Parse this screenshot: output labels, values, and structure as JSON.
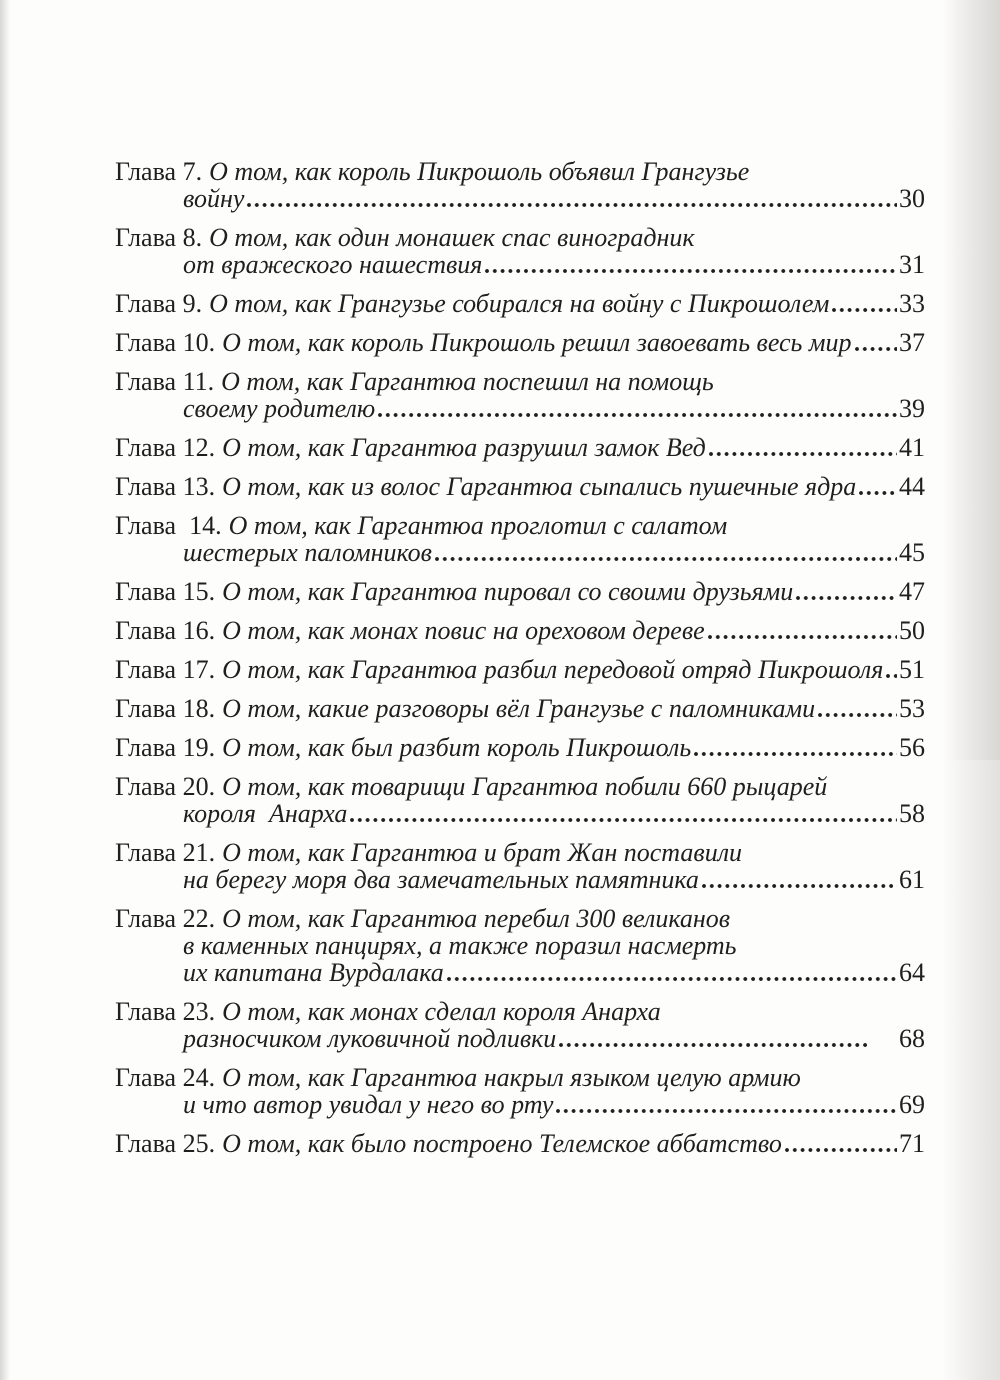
{
  "document": {
    "kind": "book-table-of-contents",
    "language": "ru",
    "ink_color": "#1f1f1f",
    "paper_color": "#fdfdfc"
  },
  "toc": {
    "entries": [
      {
        "label": "Глава 7.",
        "lines": [
          "О том, как король Пикрошоль объявил Грангузье",
          "войну"
        ],
        "page": "30"
      },
      {
        "label": "Глава 8.",
        "lines": [
          "О том, как один монашек спас виноградник",
          "от вражеского нашествия"
        ],
        "page": "31"
      },
      {
        "label": "Глава 9.",
        "lines": [
          "О том, как Грангузье собирался на войну с Пикрошолем"
        ],
        "page": "33"
      },
      {
        "label": "Глава 10.",
        "lines": [
          "О том, как король Пикрошоль решил завоевать весь мир"
        ],
        "page": "37"
      },
      {
        "label": "Глава 11.",
        "lines": [
          "О том, как Гаргантюа поспешил на помощь",
          "своему родителю"
        ],
        "page": "39"
      },
      {
        "label": "Глава 12.",
        "lines": [
          "О том, как Гаргантюа разрушил замок Вед"
        ],
        "page": "41"
      },
      {
        "label": "Глава 13.",
        "lines": [
          "О том, как из волос Гаргантюа сыпались пушечные ядра"
        ],
        "page": "44"
      },
      {
        "label": "Глава  14.",
        "lines": [
          "О том, как Гаргантюа проглотил с салатом",
          "шестерых паломников"
        ],
        "page": "45"
      },
      {
        "label": "Глава 15.",
        "lines": [
          "О том, как Гаргантюа пировал со своими друзьями"
        ],
        "page": "47"
      },
      {
        "label": "Глава 16.",
        "lines": [
          "О том, как монах повис на ореховом дереве"
        ],
        "page": "50"
      },
      {
        "label": "Глава 17.",
        "lines": [
          "О том, как Гаргантюа разбил передовой отряд Пикрошоля"
        ],
        "page": "51"
      },
      {
        "label": "Глава 18.",
        "lines": [
          "О том, какие разговоры вёл Грангузье с паломниками"
        ],
        "page": "53"
      },
      {
        "label": "Глава 19.",
        "lines": [
          "О том, как был разбит король Пикрошоль"
        ],
        "page": "56"
      },
      {
        "label": "Глава 20.",
        "lines": [
          "О том, как товарищи Гаргантюа побили 660 рыцарей",
          "короля  Анарха"
        ],
        "page": "58"
      },
      {
        "label": "Глава 21.",
        "lines": [
          "О том, как Гаргантюа и брат Жан поставили",
          "на берегу моря два замечательных памятника"
        ],
        "page": "61"
      },
      {
        "label": "Глава 22.",
        "lines": [
          "О том, как Гаргантюа перебил 300 великанов",
          "в каменных панцирях, а также поразил насмерть",
          "их капитана Вурдалака"
        ],
        "page": "64"
      },
      {
        "label": "Глава 23.",
        "lines": [
          "О том, как монах сделал короля Анарха",
          "разносчиком луковичной подливки"
        ],
        "page": "68",
        "gap_before_page": true
      },
      {
        "label": "Глава 24.",
        "lines": [
          "О том, как Гаргантюа накрыл языком целую армию",
          "и что автор увидал у него во рту"
        ],
        "page": "69"
      },
      {
        "label": "Глава 25.",
        "lines": [
          "О том, как было построено Телемское аббатство"
        ],
        "page": "71"
      }
    ]
  }
}
